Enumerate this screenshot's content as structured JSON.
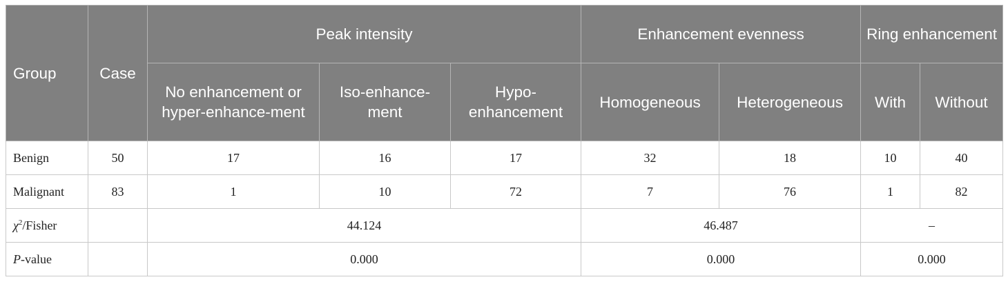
{
  "header": {
    "group": "Group",
    "case": "Case",
    "peak_intensity": "Peak intensity",
    "enhancement_evenness": "Enhancement evenness",
    "ring_enhancement": "Ring enhancement",
    "sub": {
      "no_enh": "No enhancement or hyper-enhance-ment",
      "iso": "Iso-enhance-ment",
      "hypo": "Hypo-enhancement",
      "homogeneous": "Homogeneous",
      "heterogeneous": "Heterogeneous",
      "with": "With",
      "without": "Without"
    }
  },
  "rows": [
    {
      "group": "Benign",
      "case": "50",
      "no_enh": "17",
      "iso": "16",
      "hypo": "17",
      "homogeneous": "32",
      "heterogeneous": "18",
      "with": "10",
      "without": "40"
    },
    {
      "group": "Malignant",
      "case": "83",
      "no_enh": "1",
      "iso": "10",
      "hypo": "72",
      "homogeneous": "7",
      "heterogeneous": "76",
      "with": "1",
      "without": "82"
    }
  ],
  "chi_row": {
    "label_chi": "χ",
    "label_sup": "2",
    "label_rest": "/Fisher",
    "peak": "44.124",
    "evenness": "46.487",
    "ring": "–"
  },
  "p_row": {
    "label_p": "P",
    "label_rest": "-value",
    "peak": "0.000",
    "evenness": "0.000",
    "ring": "0.000"
  }
}
